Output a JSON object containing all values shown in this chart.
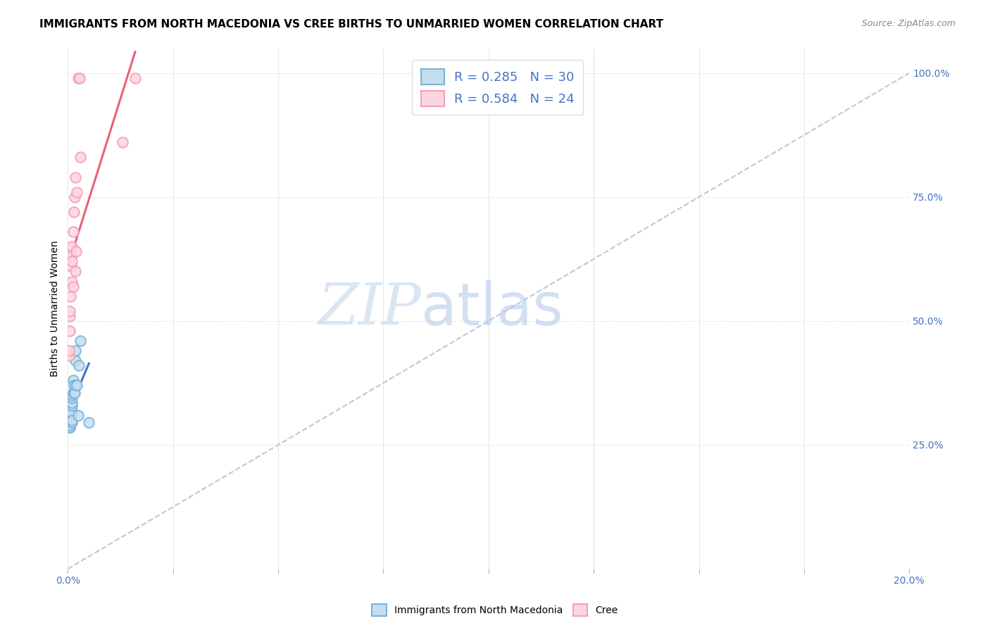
{
  "title": "IMMIGRANTS FROM NORTH MACEDONIA VS CREE BIRTHS TO UNMARRIED WOMEN CORRELATION CHART",
  "source": "Source: ZipAtlas.com",
  "ylabel": "Births to Unmarried Women",
  "right_yticks": [
    0.25,
    0.5,
    0.75,
    1.0
  ],
  "right_yticklabels": [
    "25.0%",
    "50.0%",
    "75.0%",
    "100.0%"
  ],
  "blue_color": "#7ab3d9",
  "blue_fill": "#c5ddf0",
  "pink_color": "#f4a0b8",
  "pink_fill": "#fcd5e0",
  "blue_line_color": "#4472c4",
  "pink_line_color": "#e8607a",
  "dashed_line_color": "#b0c4d8",
  "watermark_zip_color": "#c8d9ed",
  "watermark_atlas_color": "#b8cce4",
  "background_color": "#ffffff",
  "grid_color": "#e8e8e8",
  "blue_x": [
    0.0002,
    0.0003,
    0.0004,
    0.0005,
    0.0005,
    0.0006,
    0.0006,
    0.0007,
    0.0007,
    0.0008,
    0.0008,
    0.0009,
    0.0009,
    0.0009,
    0.001,
    0.001,
    0.001,
    0.0012,
    0.0013,
    0.0014,
    0.0015,
    0.0016,
    0.0017,
    0.0018,
    0.002,
    0.0022,
    0.0024,
    0.0026,
    0.003,
    0.005
  ],
  "blue_y": [
    0.295,
    0.3,
    0.285,
    0.285,
    0.29,
    0.31,
    0.315,
    0.32,
    0.325,
    0.31,
    0.315,
    0.33,
    0.335,
    0.295,
    0.345,
    0.35,
    0.3,
    0.355,
    0.38,
    0.355,
    0.37,
    0.355,
    0.42,
    0.44,
    0.37,
    0.37,
    0.31,
    0.41,
    0.46,
    0.295
  ],
  "pink_x": [
    0.0002,
    0.0003,
    0.0004,
    0.0005,
    0.0005,
    0.0006,
    0.0007,
    0.0008,
    0.0009,
    0.001,
    0.001,
    0.0012,
    0.0013,
    0.0015,
    0.0016,
    0.0017,
    0.0018,
    0.002,
    0.0022,
    0.0025,
    0.0028,
    0.003,
    0.013,
    0.016
  ],
  "pink_y": [
    0.43,
    0.44,
    0.51,
    0.52,
    0.48,
    0.55,
    0.61,
    0.63,
    0.65,
    0.58,
    0.62,
    0.57,
    0.68,
    0.72,
    0.75,
    0.79,
    0.6,
    0.64,
    0.76,
    0.99,
    0.99,
    0.83,
    0.86,
    0.99
  ],
  "xmin": 0.0,
  "xmax": 0.2,
  "ymin": 0.0,
  "ymax": 1.05,
  "xtick_positions": [
    0.0,
    0.025,
    0.05,
    0.075,
    0.1,
    0.125,
    0.15,
    0.175,
    0.2
  ]
}
